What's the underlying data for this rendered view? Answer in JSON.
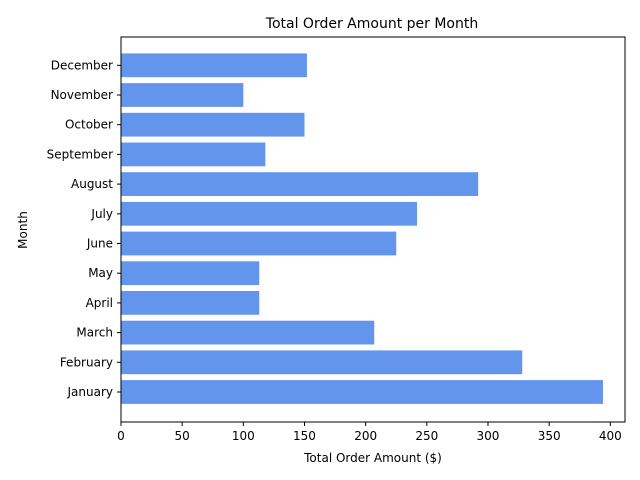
{
  "chart_data": {
    "type": "bar",
    "orientation": "horizontal",
    "title": "Total Order Amount per Month",
    "xlabel": "Total Order Amount ($)",
    "ylabel": "Month",
    "categories": [
      "January",
      "February",
      "March",
      "April",
      "May",
      "June",
      "July",
      "August",
      "September",
      "October",
      "November",
      "December"
    ],
    "values": [
      394,
      328,
      207,
      113,
      113,
      225,
      242,
      292,
      118,
      150,
      100,
      152
    ],
    "xlim": [
      0,
      412
    ],
    "xticks": [
      0,
      50,
      100,
      150,
      200,
      250,
      300,
      350,
      400
    ],
    "bar_color": "#6495ED",
    "grid": false
  }
}
